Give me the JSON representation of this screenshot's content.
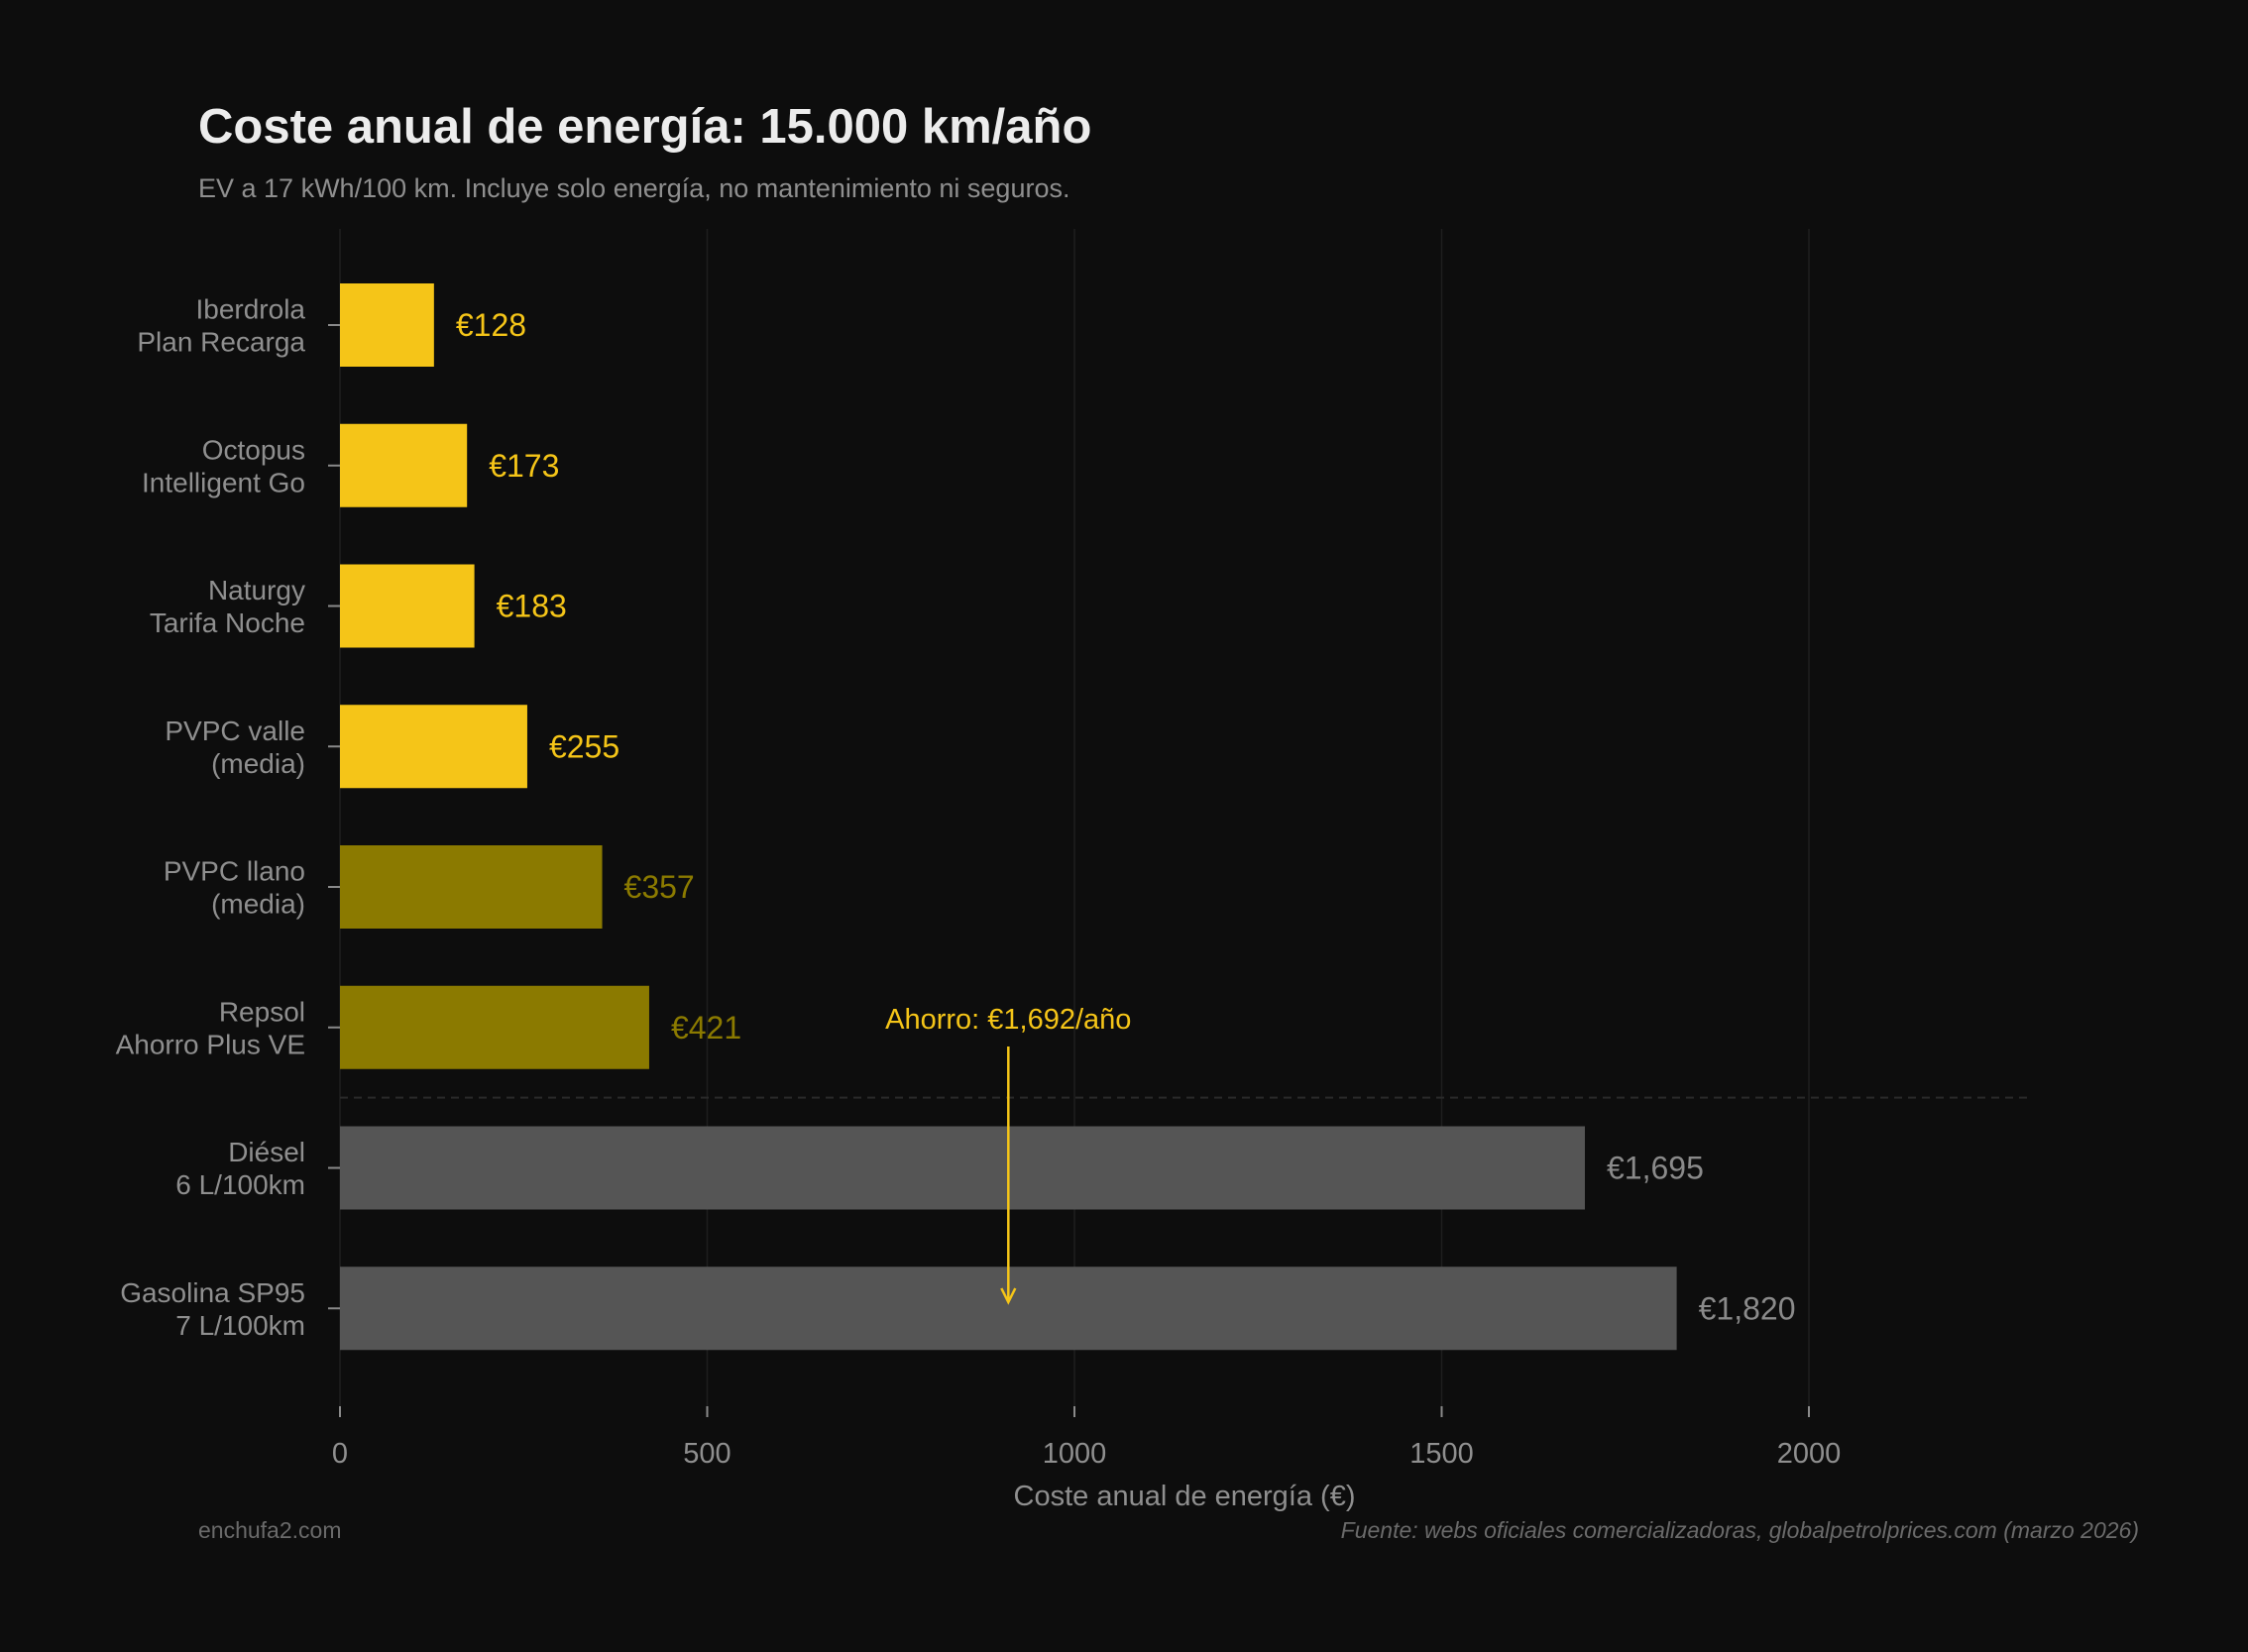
{
  "title": "Coste anual de energía: 15.000 km/año",
  "subtitle": "EV a 17 kWh/100 km. Incluye solo energía, no mantenimiento ni seguros.",
  "footer": {
    "left": "enchufa2.com",
    "right": "Fuente: webs oficiales comercializadoras, globalpetrolprices.com (marzo 2026)"
  },
  "chart_data": {
    "type": "bar",
    "orientation": "horizontal",
    "categories": [
      [
        "Iberdrola",
        "Plan Recarga"
      ],
      [
        "Octopus",
        "Intelligent Go"
      ],
      [
        "Naturgy",
        "Tarifa Noche"
      ],
      [
        "PVPC valle",
        "(media)"
      ],
      [
        "PVPC llano",
        "(media)"
      ],
      [
        "Repsol",
        "Ahorro Plus VE"
      ],
      [
        "Diésel",
        "6 L/100km"
      ],
      [
        "Gasolina SP95",
        "7 L/100km"
      ]
    ],
    "values": [
      128,
      173,
      183,
      255,
      357,
      421,
      1695,
      1820
    ],
    "data_labels": [
      "€128",
      "€173",
      "€183",
      "€255",
      "€357",
      "€421",
      "€1,695",
      "€1,820"
    ],
    "bar_colors": [
      "#F5C518",
      "#F5C518",
      "#F5C518",
      "#F5C518",
      "#8B7A00",
      "#8B7A00",
      "#555555",
      "#555555"
    ],
    "label_colors": [
      "#F5C518",
      "#F5C518",
      "#F5C518",
      "#F5C518",
      "#8B7A00",
      "#8B7A00",
      "#8a8a8a",
      "#8a8a8a"
    ],
    "xlabel": "Coste anual de energía (€)",
    "ylabel": "",
    "xlim": [
      0,
      2300
    ],
    "xticks": [
      0,
      500,
      1000,
      1500,
      2000
    ],
    "xtick_labels": [
      "0",
      "500",
      "1000",
      "1500",
      "2000"
    ],
    "grid": "vertical",
    "separator_after_index": 5,
    "annotation": {
      "text": "Ahorro: €1,692/año",
      "x": 910,
      "color": "#F5C518"
    },
    "background": "#0d0d0d"
  }
}
